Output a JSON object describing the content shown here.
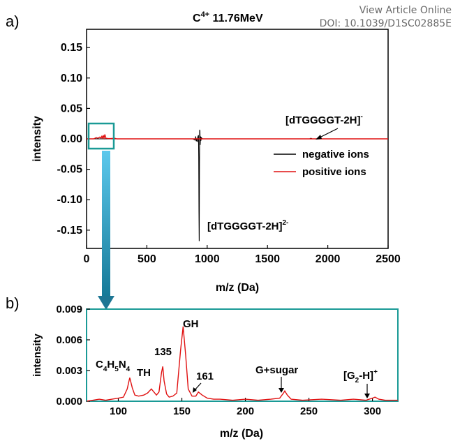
{
  "header": {
    "view_article": "View Article Online",
    "doi": "DOI: 10.1039/D1SC02885E"
  },
  "chart_data": [
    {
      "panel_label": "a)",
      "type": "line",
      "title_base": "C",
      "title_sup": "4+",
      "title_rest": " 11.76MeV",
      "xlabel": "m/z (Da)",
      "ylabel": "intensity",
      "xlim": [
        0,
        2500
      ],
      "ylim": [
        -0.18,
        0.18
      ],
      "xticks": [
        "0",
        "500",
        "1000",
        "1500",
        "2000",
        "2500"
      ],
      "yticks": [
        "0.15",
        "0.10",
        "0.05",
        "0.00",
        "-0.05",
        "-0.10",
        "-0.15"
      ],
      "xtick_values": [
        0,
        500,
        1000,
        1500,
        2000,
        2500
      ],
      "ytick_values": [
        0.15,
        0.1,
        0.05,
        0.0,
        -0.05,
        -0.1,
        -0.15
      ],
      "legend_position": "right",
      "series": [
        {
          "name": "negative ions",
          "color": "#000000",
          "points": [
            [
              0,
              0
            ],
            [
              880,
              0
            ],
            [
              900,
              -0.002
            ],
            [
              905,
              0.004
            ],
            [
              910,
              -0.004
            ],
            [
              915,
              0
            ],
            [
              918,
              -0.005
            ],
            [
              922,
              0.003
            ],
            [
              928,
              0.006
            ],
            [
              930,
              -0.03
            ],
            [
              932,
              -0.12
            ],
            [
              934,
              -0.168
            ],
            [
              936,
              -0.04
            ],
            [
              938,
              0.015
            ],
            [
              940,
              0.012
            ],
            [
              942,
              -0.01
            ],
            [
              945,
              0.004
            ],
            [
              948,
              -0.003
            ],
            [
              952,
              0.002
            ],
            [
              960,
              0
            ],
            [
              1850,
              0
            ],
            [
              1860,
              0.001
            ],
            [
              1870,
              0
            ],
            [
              2500,
              0
            ]
          ]
        },
        {
          "name": "positive ions",
          "color": "#e01010",
          "points": [
            [
              0,
              0
            ],
            [
              60,
              0
            ],
            [
              80,
              0.002
            ],
            [
              95,
              0.001
            ],
            [
              110,
              0.003
            ],
            [
              120,
              0.0012
            ],
            [
              126,
              0.004
            ],
            [
              133,
              0.0012
            ],
            [
              138,
              0.006
            ],
            [
              145,
              0.0015
            ],
            [
              152,
              0.0072
            ],
            [
              160,
              0.001
            ],
            [
              175,
              0.0006
            ],
            [
              200,
              0.0005
            ],
            [
              232,
              0.001
            ],
            [
              250,
              0
            ],
            [
              2500,
              0
            ]
          ]
        }
      ],
      "annotations": [
        {
          "base": "[dTGGGGT-2H]",
          "sup": "-",
          "x": 1870,
          "y": 0.001
        },
        {
          "base": "[dTGGGGT-2H]",
          "sup": "2-",
          "x": 934,
          "y": -0.13
        }
      ],
      "zoom_box": {
        "x_range": [
          60,
          250
        ],
        "y_range": [
          -0.012,
          0.025
        ]
      }
    },
    {
      "panel_label": "b)",
      "type": "line",
      "xlabel": "m/z (Da)",
      "ylabel": "intensity",
      "xlim": [
        75,
        320
      ],
      "ylim": [
        0,
        0.009
      ],
      "xticks": [
        "100",
        "150",
        "200",
        "250",
        "300"
      ],
      "yticks": [
        "0.009",
        "0.006",
        "0.003",
        "0.000"
      ],
      "xtick_values": [
        100,
        150,
        200,
        250,
        300
      ],
      "ytick_values": [
        0.009,
        0.006,
        0.003,
        0.0
      ],
      "series": [
        {
          "color": "#e01010",
          "points": [
            [
              75,
              0
            ],
            [
              80,
              0.0001
            ],
            [
              85,
              0.0002
            ],
            [
              90,
              0.0001
            ],
            [
              95,
              0.0002
            ],
            [
              100,
              0.0003
            ],
            [
              104,
              0.0004
            ],
            [
              107,
              0.0012
            ],
            [
              109,
              0.0023
            ],
            [
              111,
              0.0013
            ],
            [
              113,
              0.0006
            ],
            [
              116,
              0.0005
            ],
            [
              120,
              0.0006
            ],
            [
              123,
              0.0008
            ],
            [
              126,
              0.0012
            ],
            [
              128,
              0.0009
            ],
            [
              130,
              0.0006
            ],
            [
              132,
              0.0009
            ],
            [
              134,
              0.0028
            ],
            [
              135,
              0.0034
            ],
            [
              136,
              0.002
            ],
            [
              138,
              0.0007
            ],
            [
              140,
              0.0004
            ],
            [
              143,
              0.0005
            ],
            [
              146,
              0.0008
            ],
            [
              149,
              0.005
            ],
            [
              151,
              0.0073
            ],
            [
              153,
              0.0045
            ],
            [
              155,
              0.0012
            ],
            [
              158,
              0.0005
            ],
            [
              161,
              0.0005
            ],
            [
              163,
              0.0009
            ],
            [
              166,
              0.0006
            ],
            [
              170,
              0.0003
            ],
            [
              175,
              0.0002
            ],
            [
              180,
              0.0002
            ],
            [
              190,
              0.0001
            ],
            [
              200,
              0.0002
            ],
            [
              210,
              0.0001
            ],
            [
              220,
              0.0002
            ],
            [
              227,
              0.0003
            ],
            [
              230,
              0.0008
            ],
            [
              231,
              0.001
            ],
            [
              233,
              0.0006
            ],
            [
              236,
              0.0002
            ],
            [
              245,
              0.0001
            ],
            [
              260,
              0.0002
            ],
            [
              275,
              0.0001
            ],
            [
              285,
              0.0002
            ],
            [
              295,
              0.0001
            ],
            [
              300,
              0.0003
            ],
            [
              302,
              0.0004
            ],
            [
              305,
              0.0002
            ],
            [
              310,
              0.0001
            ],
            [
              320,
              0.0001
            ]
          ]
        }
      ],
      "annotations": [
        {
          "kind": "formula",
          "x": 109,
          "y": 0.0023
        },
        {
          "text": "TH",
          "x": 126,
          "y": 0.0012
        },
        {
          "text": "135",
          "x": 135,
          "y": 0.0034
        },
        {
          "text": "GH",
          "x": 151,
          "y": 0.0073
        },
        {
          "text": "161",
          "x": 163,
          "y": 0.0009
        },
        {
          "text": "G+sugar",
          "x": 231,
          "y": 0.001
        },
        {
          "base": "[G",
          "sub": "2",
          "rest": "-H]",
          "sup": "+",
          "x": 302,
          "y": 0.0004
        }
      ],
      "formula_parts": [
        "C",
        "4",
        "H",
        "5",
        "N",
        "4"
      ]
    }
  ]
}
